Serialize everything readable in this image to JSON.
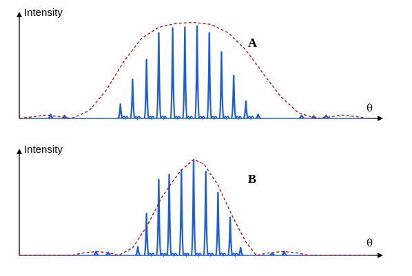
{
  "chart_data": [
    {
      "type": "line",
      "panel_label": "A",
      "ylabel": "Intensity",
      "xlabel": "θ",
      "x_range": [
        -1,
        1
      ],
      "y_range": [
        0,
        1.1
      ],
      "grid": false,
      "legend": "none",
      "series": [
        {
          "style": "dashed",
          "color": "#b22222",
          "points": [
            [
              -1.0,
              0.0
            ],
            [
              -0.93,
              0.015
            ],
            [
              -0.85,
              0.035
            ],
            [
              -0.78,
              0.02
            ],
            [
              -0.72,
              0.005
            ],
            [
              -0.7,
              0.0
            ],
            [
              -0.6,
              0.08
            ],
            [
              -0.5,
              0.3
            ],
            [
              -0.4,
              0.6
            ],
            [
              -0.3,
              0.84
            ],
            [
              -0.2,
              0.96
            ],
            [
              -0.1,
              1.0
            ],
            [
              0.0,
              1.01
            ],
            [
              0.1,
              0.99
            ],
            [
              0.2,
              0.9
            ],
            [
              0.3,
              0.72
            ],
            [
              0.4,
              0.47
            ],
            [
              0.5,
              0.23
            ],
            [
              0.6,
              0.06
            ],
            [
              0.7,
              0.0
            ],
            [
              0.76,
              0.01
            ],
            [
              0.85,
              0.035
            ],
            [
              0.93,
              0.02
            ],
            [
              1.0,
              0.0
            ]
          ]
        },
        {
          "style": "solid",
          "color": "#1f5fd6",
          "peaks": [
            [
              -0.82,
              0.04
            ],
            [
              -0.74,
              0.03
            ],
            [
              -0.42,
              0.15
            ],
            [
              -0.35,
              0.41
            ],
            [
              -0.27,
              0.62
            ],
            [
              -0.2,
              0.9
            ],
            [
              -0.12,
              0.95
            ],
            [
              -0.05,
              0.96
            ],
            [
              0.02,
              0.97
            ],
            [
              0.09,
              0.9
            ],
            [
              0.16,
              0.7
            ],
            [
              0.23,
              0.45
            ],
            [
              0.3,
              0.18
            ],
            [
              0.37,
              0.04
            ],
            [
              0.62,
              0.03
            ],
            [
              0.69,
              0.025
            ],
            [
              0.76,
              0.03
            ]
          ]
        }
      ]
    },
    {
      "type": "line",
      "panel_label": "B",
      "ylabel": "Intensity",
      "xlabel": "θ",
      "x_range": [
        -1,
        1
      ],
      "y_range": [
        0,
        1.1
      ],
      "grid": false,
      "legend": "none",
      "series": [
        {
          "style": "dashed",
          "color": "#b22222",
          "points": [
            [
              -1.0,
              0.0
            ],
            [
              -0.7,
              0.0
            ],
            [
              -0.62,
              0.03
            ],
            [
              -0.55,
              0.04
            ],
            [
              -0.48,
              0.025
            ],
            [
              -0.43,
              0.0
            ],
            [
              -0.35,
              0.08
            ],
            [
              -0.27,
              0.3
            ],
            [
              -0.18,
              0.62
            ],
            [
              -0.08,
              0.88
            ],
            [
              0.0,
              1.01
            ],
            [
              0.06,
              0.96
            ],
            [
              0.14,
              0.74
            ],
            [
              0.22,
              0.42
            ],
            [
              0.3,
              0.14
            ],
            [
              0.36,
              0.0
            ],
            [
              0.44,
              0.03
            ],
            [
              0.52,
              0.04
            ],
            [
              0.6,
              0.025
            ],
            [
              0.66,
              0.0
            ],
            [
              1.0,
              0.0
            ]
          ]
        },
        {
          "style": "solid",
          "color": "#1f5fd6",
          "peaks": [
            [
              -0.56,
              0.04
            ],
            [
              -0.49,
              0.03
            ],
            [
              -0.32,
              0.09
            ],
            [
              -0.27,
              0.44
            ],
            [
              -0.2,
              0.8
            ],
            [
              -0.14,
              0.85
            ],
            [
              -0.07,
              0.9
            ],
            [
              0.0,
              1.0
            ],
            [
              0.07,
              0.88
            ],
            [
              0.14,
              0.66
            ],
            [
              0.21,
              0.4
            ],
            [
              0.27,
              0.08
            ],
            [
              0.45,
              0.02
            ],
            [
              0.52,
              0.04
            ]
          ]
        }
      ]
    }
  ]
}
